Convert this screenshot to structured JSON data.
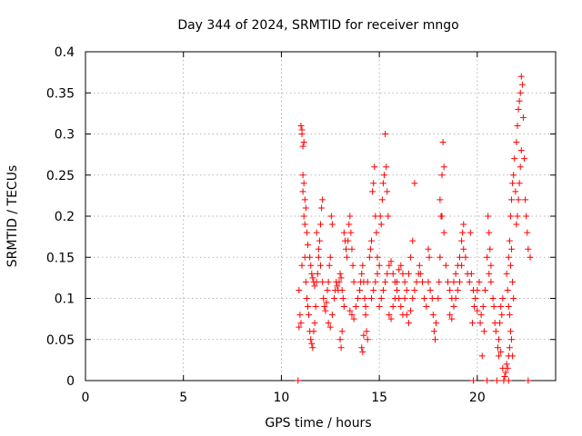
{
  "chart_data": {
    "type": "scatter",
    "title": "Day 344 of 2024, SRMTID for receiver mngo",
    "xlabel": "GPS time / hours",
    "ylabel": "SRMTID / TECUs",
    "xlim": [
      0,
      24
    ],
    "ylim": [
      0,
      0.4
    ],
    "x_ticks": [
      0,
      5,
      10,
      15,
      20
    ],
    "x_tick_labels": [
      "0",
      "5",
      "10",
      "15",
      "20"
    ],
    "y_ticks": [
      0,
      0.05,
      0.1,
      0.15,
      0.2,
      0.25,
      0.3,
      0.35,
      0.4
    ],
    "y_tick_labels": [
      "0",
      "0.05",
      "0.1",
      "0.15",
      "0.2",
      "0.25",
      "0.3",
      "0.35",
      "0.4"
    ],
    "grid": true,
    "marker": "plus",
    "color": "#ff0000",
    "series": [
      {
        "name": "SRMTID",
        "points": [
          [
            10.85,
            0.0
          ],
          [
            11.0,
            0.31
          ],
          [
            11.05,
            0.305
          ],
          [
            11.1,
            0.285
          ],
          [
            11.15,
            0.29
          ],
          [
            11.05,
            0.3
          ],
          [
            11.1,
            0.25
          ],
          [
            11.15,
            0.24
          ],
          [
            11.2,
            0.22
          ],
          [
            11.25,
            0.21
          ],
          [
            11.2,
            0.19
          ],
          [
            11.15,
            0.2
          ],
          [
            11.1,
            0.23
          ],
          [
            10.9,
            0.11
          ],
          [
            10.95,
            0.08
          ],
          [
            11.0,
            0.07
          ],
          [
            10.9,
            0.065
          ],
          [
            11.05,
            0.14
          ],
          [
            11.2,
            0.15
          ],
          [
            11.25,
            0.12
          ],
          [
            11.3,
            0.1
          ],
          [
            11.35,
            0.09
          ],
          [
            11.4,
            0.08
          ],
          [
            11.45,
            0.06
          ],
          [
            11.5,
            0.05
          ],
          [
            11.55,
            0.045
          ],
          [
            11.6,
            0.04
          ],
          [
            11.65,
            0.06
          ],
          [
            11.7,
            0.07
          ],
          [
            11.75,
            0.09
          ],
          [
            11.3,
            0.18
          ],
          [
            11.35,
            0.165
          ],
          [
            11.45,
            0.15
          ],
          [
            11.5,
            0.14
          ],
          [
            11.55,
            0.13
          ],
          [
            11.6,
            0.125
          ],
          [
            11.65,
            0.12
          ],
          [
            11.7,
            0.115
          ],
          [
            11.8,
            0.12
          ],
          [
            11.85,
            0.13
          ],
          [
            11.9,
            0.15
          ],
          [
            11.95,
            0.17
          ],
          [
            12.0,
            0.19
          ],
          [
            12.05,
            0.21
          ],
          [
            12.1,
            0.22
          ],
          [
            11.8,
            0.18
          ],
          [
            11.9,
            0.16
          ],
          [
            12.0,
            0.14
          ],
          [
            12.1,
            0.12
          ],
          [
            12.15,
            0.1
          ],
          [
            12.2,
            0.09
          ],
          [
            12.25,
            0.085
          ],
          [
            12.3,
            0.095
          ],
          [
            12.35,
            0.11
          ],
          [
            12.4,
            0.12
          ],
          [
            12.45,
            0.14
          ],
          [
            12.5,
            0.15
          ],
          [
            12.55,
            0.2
          ],
          [
            12.6,
            0.19
          ],
          [
            12.4,
            0.07
          ],
          [
            12.5,
            0.065
          ],
          [
            12.6,
            0.08
          ],
          [
            12.7,
            0.1
          ],
          [
            12.75,
            0.11
          ],
          [
            12.8,
            0.12
          ],
          [
            12.85,
            0.115
          ],
          [
            12.9,
            0.11
          ],
          [
            12.95,
            0.12
          ],
          [
            13.0,
            0.13
          ],
          [
            13.05,
            0.125
          ],
          [
            13.1,
            0.11
          ],
          [
            13.15,
            0.1
          ],
          [
            13.2,
            0.09
          ],
          [
            13.0,
            0.05
          ],
          [
            13.05,
            0.04
          ],
          [
            13.1,
            0.06
          ],
          [
            13.2,
            0.18
          ],
          [
            13.25,
            0.17
          ],
          [
            13.3,
            0.16
          ],
          [
            13.35,
            0.15
          ],
          [
            13.4,
            0.17
          ],
          [
            13.45,
            0.19
          ],
          [
            13.5,
            0.2
          ],
          [
            13.55,
            0.18
          ],
          [
            13.6,
            0.16
          ],
          [
            13.65,
            0.14
          ],
          [
            13.7,
            0.12
          ],
          [
            13.5,
            0.085
          ],
          [
            13.6,
            0.08
          ],
          [
            13.7,
            0.075
          ],
          [
            13.8,
            0.09
          ],
          [
            13.9,
            0.1
          ],
          [
            14.0,
            0.11
          ],
          [
            14.05,
            0.12
          ],
          [
            14.1,
            0.13
          ],
          [
            14.15,
            0.14
          ],
          [
            14.2,
            0.12
          ],
          [
            14.25,
            0.1
          ],
          [
            14.3,
            0.08
          ],
          [
            14.35,
            0.06
          ],
          [
            14.4,
            0.05
          ],
          [
            14.1,
            0.04
          ],
          [
            14.15,
            0.035
          ],
          [
            14.2,
            0.055
          ],
          [
            14.3,
            0.09
          ],
          [
            14.4,
            0.12
          ],
          [
            14.5,
            0.15
          ],
          [
            14.55,
            0.16
          ],
          [
            14.6,
            0.17
          ],
          [
            14.65,
            0.23
          ],
          [
            14.7,
            0.24
          ],
          [
            14.75,
            0.26
          ],
          [
            14.8,
            0.2
          ],
          [
            14.85,
            0.18
          ],
          [
            14.9,
            0.15
          ],
          [
            14.6,
            0.1
          ],
          [
            14.7,
            0.11
          ],
          [
            14.8,
            0.12
          ],
          [
            14.9,
            0.13
          ],
          [
            15.0,
            0.14
          ],
          [
            15.05,
            0.2
          ],
          [
            15.1,
            0.19
          ],
          [
            15.15,
            0.22
          ],
          [
            15.2,
            0.24
          ],
          [
            15.25,
            0.25
          ],
          [
            15.3,
            0.3
          ],
          [
            15.35,
            0.26
          ],
          [
            15.4,
            0.23
          ],
          [
            15.45,
            0.2
          ],
          [
            15.0,
            0.09
          ],
          [
            15.1,
            0.1
          ],
          [
            15.2,
            0.11
          ],
          [
            15.3,
            0.12
          ],
          [
            15.4,
            0.13
          ],
          [
            15.5,
            0.14
          ],
          [
            15.6,
            0.145
          ],
          [
            15.7,
            0.13
          ],
          [
            15.8,
            0.12
          ],
          [
            15.9,
            0.11
          ],
          [
            16.0,
            0.1
          ],
          [
            16.1,
            0.09
          ],
          [
            16.2,
            0.08
          ],
          [
            16.3,
            0.1
          ],
          [
            15.5,
            0.08
          ],
          [
            15.6,
            0.075
          ],
          [
            15.7,
            0.09
          ],
          [
            15.8,
            0.1
          ],
          [
            15.9,
            0.12
          ],
          [
            16.0,
            0.135
          ],
          [
            16.1,
            0.14
          ],
          [
            16.2,
            0.13
          ],
          [
            16.3,
            0.12
          ],
          [
            16.4,
            0.11
          ],
          [
            16.5,
            0.13
          ],
          [
            16.6,
            0.15
          ],
          [
            16.7,
            0.17
          ],
          [
            16.8,
            0.24
          ],
          [
            16.4,
            0.08
          ],
          [
            16.5,
            0.07
          ],
          [
            16.6,
            0.085
          ],
          [
            16.7,
            0.1
          ],
          [
            16.8,
            0.11
          ],
          [
            16.9,
            0.12
          ],
          [
            17.0,
            0.13
          ],
          [
            17.05,
            0.14
          ],
          [
            17.1,
            0.13
          ],
          [
            17.2,
            0.12
          ],
          [
            17.3,
            0.1
          ],
          [
            17.4,
            0.09
          ],
          [
            17.5,
            0.16
          ],
          [
            17.55,
            0.15
          ],
          [
            17.5,
            0.12
          ],
          [
            17.6,
            0.11
          ],
          [
            17.7,
            0.1
          ],
          [
            17.75,
            0.08
          ],
          [
            17.8,
            0.06
          ],
          [
            17.85,
            0.05
          ],
          [
            17.9,
            0.07
          ],
          [
            18.0,
            0.1
          ],
          [
            18.05,
            0.12
          ],
          [
            18.1,
            0.15
          ],
          [
            18.15,
            0.2
          ],
          [
            18.2,
            0.25
          ],
          [
            18.25,
            0.29
          ],
          [
            18.3,
            0.26
          ],
          [
            18.1,
            0.22
          ],
          [
            18.2,
            0.2
          ],
          [
            18.3,
            0.18
          ],
          [
            18.4,
            0.14
          ],
          [
            18.5,
            0.12
          ],
          [
            18.6,
            0.11
          ],
          [
            18.7,
            0.1
          ],
          [
            18.8,
            0.12
          ],
          [
            18.9,
            0.13
          ],
          [
            19.0,
            0.14
          ],
          [
            19.1,
            0.15
          ],
          [
            19.2,
            0.17
          ],
          [
            19.25,
            0.18
          ],
          [
            19.3,
            0.19
          ],
          [
            18.6,
            0.08
          ],
          [
            18.7,
            0.075
          ],
          [
            18.8,
            0.09
          ],
          [
            18.9,
            0.1
          ],
          [
            19.0,
            0.11
          ],
          [
            19.1,
            0.12
          ],
          [
            19.2,
            0.14
          ],
          [
            19.3,
            0.16
          ],
          [
            19.4,
            0.15
          ],
          [
            19.5,
            0.13
          ],
          [
            19.6,
            0.12
          ],
          [
            19.65,
            0.18
          ],
          [
            19.7,
            0.13
          ],
          [
            19.8,
            0.11
          ],
          [
            19.75,
            0.07
          ],
          [
            19.8,
            0.0
          ],
          [
            19.9,
            0.1
          ],
          [
            20.0,
            0.11
          ],
          [
            20.1,
            0.12
          ],
          [
            20.2,
            0.08
          ],
          [
            20.25,
            0.03
          ],
          [
            20.3,
            0.09
          ],
          [
            20.4,
            0.11
          ],
          [
            20.5,
            0.15
          ],
          [
            20.55,
            0.2
          ],
          [
            20.6,
            0.18
          ],
          [
            20.65,
            0.16
          ],
          [
            20.7,
            0.14
          ],
          [
            20.5,
            0.0
          ],
          [
            20.6,
            0.13
          ],
          [
            20.7,
            0.12
          ],
          [
            20.8,
            0.1
          ],
          [
            20.85,
            0.09
          ],
          [
            20.9,
            0.07
          ],
          [
            20.95,
            0.06
          ],
          [
            21.0,
            0.0
          ],
          [
            21.05,
            0.04
          ],
          [
            21.1,
            0.05
          ],
          [
            21.15,
            0.07
          ],
          [
            21.2,
            0.09
          ],
          [
            21.25,
            0.08
          ],
          [
            21.3,
            0.1
          ],
          [
            21.1,
            0.03
          ],
          [
            21.2,
            0.035
          ],
          [
            21.3,
            0.015
          ],
          [
            21.35,
            0.0
          ],
          [
            21.4,
            0.005
          ],
          [
            21.45,
            0.01
          ],
          [
            21.5,
            0.02
          ],
          [
            21.55,
            0.015
          ],
          [
            21.6,
            0.03
          ],
          [
            21.65,
            0.04
          ],
          [
            21.7,
            0.06
          ],
          [
            21.75,
            0.05
          ],
          [
            21.8,
            0.03
          ],
          [
            21.6,
            0.0
          ],
          [
            21.6,
            0.15
          ],
          [
            21.65,
            0.17
          ],
          [
            21.7,
            0.2
          ],
          [
            21.75,
            0.22
          ],
          [
            21.8,
            0.24
          ],
          [
            21.85,
            0.25
          ],
          [
            21.9,
            0.27
          ],
          [
            21.95,
            0.23
          ],
          [
            22.0,
            0.19
          ],
          [
            22.05,
            0.2
          ],
          [
            22.1,
            0.22
          ],
          [
            22.15,
            0.24
          ],
          [
            22.2,
            0.26
          ],
          [
            22.25,
            0.28
          ],
          [
            22.0,
            0.29
          ],
          [
            22.05,
            0.31
          ],
          [
            22.1,
            0.33
          ],
          [
            22.15,
            0.34
          ],
          [
            22.2,
            0.35
          ],
          [
            22.25,
            0.37
          ],
          [
            22.3,
            0.36
          ],
          [
            22.35,
            0.32
          ],
          [
            22.4,
            0.27
          ],
          [
            22.45,
            0.22
          ],
          [
            22.5,
            0.2
          ],
          [
            22.55,
            0.18
          ],
          [
            22.6,
            0.16
          ],
          [
            22.7,
            0.15
          ],
          [
            21.5,
            0.13
          ],
          [
            21.55,
            0.11
          ],
          [
            21.6,
            0.09
          ],
          [
            21.65,
            0.08
          ],
          [
            21.7,
            0.14
          ],
          [
            21.75,
            0.16
          ],
          [
            21.8,
            0.12
          ],
          [
            21.85,
            0.1
          ],
          [
            22.6,
            0.0
          ],
          [
            19.85,
            0.09
          ],
          [
            20.0,
            0.085
          ],
          [
            20.15,
            0.07
          ],
          [
            20.35,
            0.06
          ]
        ]
      }
    ]
  }
}
